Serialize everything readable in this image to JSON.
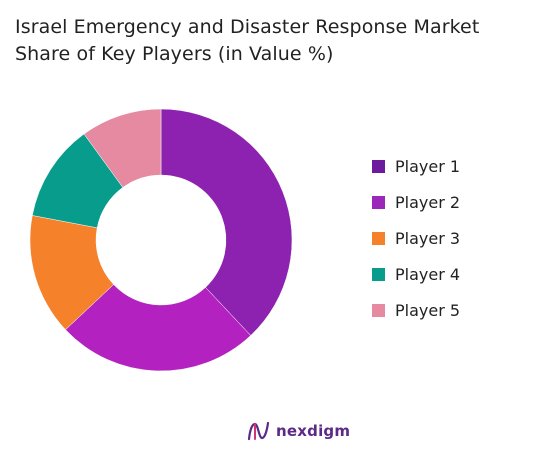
{
  "chart_data": {
    "type": "pie",
    "donut": true,
    "title_line1": "Israel Emergency and Disaster Response Market",
    "title_line2": "Share of Key Players (in Value %)",
    "categories": [
      "Player 1",
      "Player 2",
      "Player 3",
      "Player 4",
      "Player 5"
    ],
    "values": [
      38,
      25,
      15,
      12,
      10
    ],
    "colors": [
      "#8E22B0",
      "#B321C0",
      "#F5822A",
      "#079C8B",
      "#E58AA0"
    ],
    "legend_colors": [
      "#6D1A9C",
      "#9B28B8",
      "#F5822A",
      "#079C8B",
      "#E58AA0"
    ],
    "legend_position": "right"
  },
  "footer": {
    "logo_text": "nexdigm",
    "logo_icon": "nexdigm-logo-icon"
  }
}
